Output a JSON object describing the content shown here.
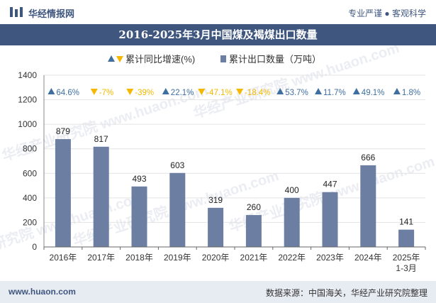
{
  "header": {
    "brand": "华经情报网",
    "slogan": "专业严谨 ● 客观科学"
  },
  "footer": {
    "website": "www.huaon.com",
    "source": "数据来源：中国海关，华经产业研究院整理"
  },
  "watermark": "华经产业研究院 www.huaon.com",
  "colors": {
    "bar": "#6d7ea3",
    "up": "#3f6fa0",
    "down": "#f5b800",
    "header": "#3f567f"
  },
  "chart_data": {
    "type": "bar",
    "title": "2016-2025年3月中国煤及褐煤出口数量",
    "legend": {
      "growth_label": "累计同比增速(%)",
      "value_label": "累计出口数量（万吨）"
    },
    "categories": [
      "2016年",
      "2017年",
      "2018年",
      "2019年",
      "2020年",
      "2021年",
      "2022年",
      "2023年",
      "2024年",
      "2025年\n1-3月"
    ],
    "values": [
      879,
      817,
      493,
      603,
      319,
      260,
      400,
      447,
      666,
      141
    ],
    "growth": [
      64.6,
      -7,
      -39,
      22.1,
      -47.1,
      -18.4,
      53.7,
      11.7,
      49.1,
      1.8
    ],
    "growth_labels": [
      "64.6%",
      "-7%",
      "-39%",
      "22.1%",
      "-47.1%",
      "-18.4%",
      "53.7%",
      "11.7%",
      "49.1%",
      "1.8%"
    ],
    "ylim": [
      0,
      1400
    ],
    "yticks": [
      0,
      200,
      400,
      600,
      800,
      1000,
      1200,
      1400
    ]
  }
}
